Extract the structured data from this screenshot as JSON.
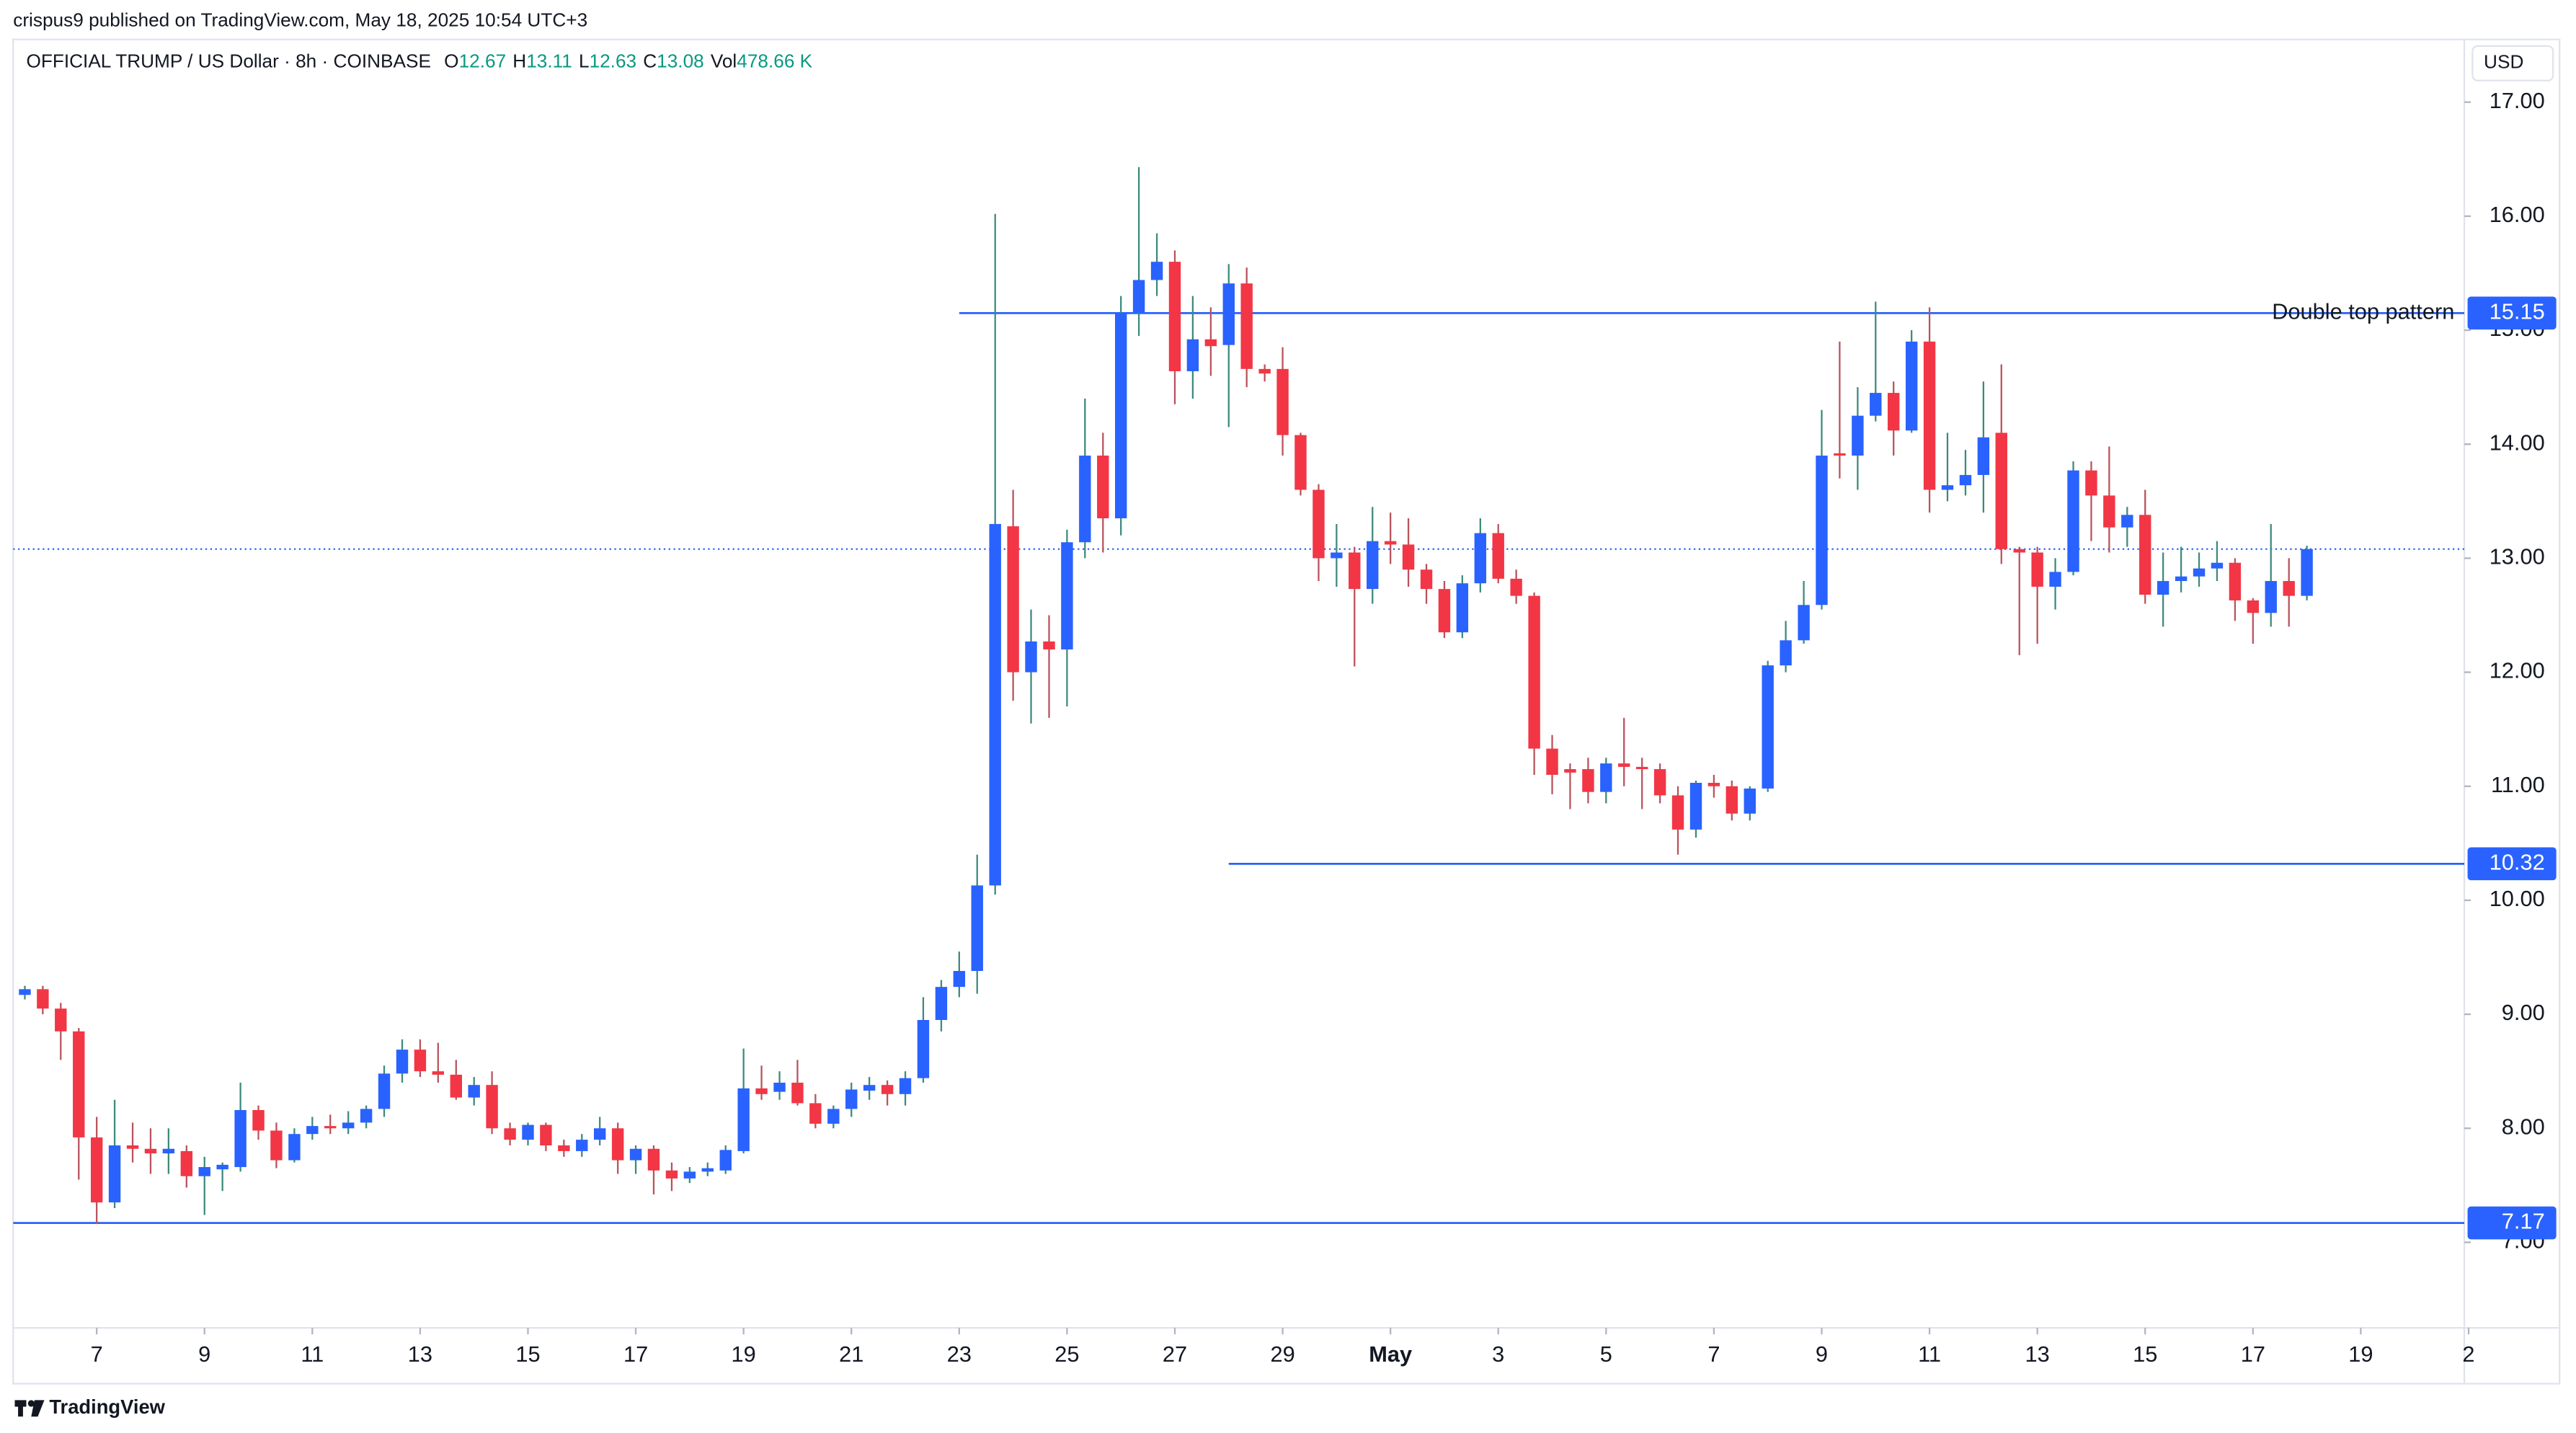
{
  "published_by": "crispus9 published on TradingView.com, May 18, 2025 10:54 UTC+3",
  "footer": "TradingView",
  "chart_data": {
    "type": "candlestick",
    "title": "OFFICIAL TRUMP / US Dollar · 8h · COINBASE",
    "currency": "USD",
    "legend": {
      "open_label": "O",
      "high_label": "H",
      "low_label": "L",
      "close_label": "C",
      "volume_label": "Vol",
      "volume": "478.66 K"
    },
    "up_color": "#2962ff",
    "down_color": "#f23645",
    "wick_up_color": "#3d8a7c",
    "wick_down_color": "#b8535d",
    "level_color": "#2962ff",
    "annotation_color": "#9c27b0",
    "value_color": "#089981",
    "last_price_line": true,
    "x": [
      5.667,
      6,
      6.333,
      6.667,
      7,
      7.333,
      7.667,
      8,
      8.333,
      8.667,
      9,
      9.333,
      9.667,
      10,
      10.333,
      10.667,
      11,
      11.333,
      11.667,
      12,
      12.333,
      12.667,
      13,
      13.333,
      13.667,
      14,
      14.333,
      14.667,
      15,
      15.333,
      15.667,
      16,
      16.333,
      16.667,
      17,
      17.333,
      17.667,
      18,
      18.333,
      18.667,
      19,
      19.333,
      19.667,
      20,
      20.333,
      20.667,
      21,
      21.333,
      21.667,
      22,
      22.333,
      22.667,
      23,
      23.333,
      23.667,
      24,
      24.333,
      24.667,
      25,
      25.333,
      25.667,
      26,
      26.333,
      26.667,
      27,
      27.333,
      27.667,
      28,
      28.333,
      28.667,
      29,
      29.333,
      29.667,
      30,
      30.333,
      30.667,
      31,
      31.333,
      31.667,
      32,
      32.333,
      32.667,
      33,
      33.333,
      33.667,
      34,
      34.333,
      34.667,
      35,
      35.333,
      35.667,
      36,
      36.333,
      36.667,
      37,
      37.333,
      37.667,
      38,
      38.333,
      38.667,
      39,
      39.333,
      39.667,
      40,
      40.333,
      40.667,
      41,
      41.333,
      41.667,
      42,
      42.333,
      42.667,
      43,
      43.333,
      43.667,
      44,
      44.333,
      44.667,
      45,
      45.333,
      45.667,
      46,
      46.333,
      46.667,
      47,
      47.333,
      47.667,
      48
    ],
    "open": [
      9.17,
      9.22,
      9.05,
      8.85,
      7.92,
      7.35,
      7.85,
      7.82,
      7.78,
      7.8,
      7.58,
      7.64,
      7.66,
      8.16,
      7.98,
      7.72,
      7.95,
      8.02,
      8.0,
      8.05,
      8.17,
      8.48,
      8.69,
      8.5,
      8.47,
      8.27,
      8.38,
      8.0,
      7.9,
      8.03,
      7.85,
      7.8,
      7.9,
      8.0,
      7.72,
      7.82,
      7.63,
      7.56,
      7.62,
      7.63,
      7.8,
      8.35,
      8.32,
      8.4,
      8.22,
      8.04,
      8.17,
      8.33,
      8.38,
      8.3,
      8.44,
      8.95,
      9.24,
      9.38,
      10.13,
      13.28,
      12.0,
      12.27,
      12.2,
      13.14,
      13.9,
      13.35,
      15.15,
      15.44,
      15.6,
      14.64,
      14.92,
      14.87,
      15.41,
      14.66,
      14.66,
      14.08,
      13.6,
      13.0,
      13.05,
      12.73,
      13.15,
      13.12,
      12.9,
      12.73,
      12.35,
      12.78,
      13.22,
      12.82,
      12.67,
      11.33,
      11.15,
      11.15,
      10.95,
      11.2,
      11.17,
      11.15,
      10.92,
      10.62,
      11.03,
      11.0,
      10.76,
      10.98,
      12.06,
      12.28,
      12.59,
      13.92,
      13.9,
      14.25,
      14.45,
      14.12,
      14.9,
      13.6,
      13.64,
      13.73,
      14.1,
      13.08,
      13.05,
      12.75,
      12.88,
      13.77,
      13.55,
      13.27,
      13.38,
      12.68,
      12.8,
      12.84,
      12.91,
      12.96,
      12.63,
      12.52,
      12.8,
      12.67
    ],
    "high": [
      9.25,
      9.25,
      9.1,
      8.88,
      8.1,
      8.25,
      8.05,
      8.0,
      8.0,
      7.85,
      7.75,
      7.7,
      8.4,
      8.2,
      8.05,
      8.0,
      8.1,
      8.12,
      8.15,
      8.2,
      8.55,
      8.78,
      8.78,
      8.75,
      8.6,
      8.45,
      8.5,
      8.05,
      8.05,
      8.05,
      7.9,
      7.95,
      8.1,
      8.05,
      7.85,
      7.85,
      7.7,
      7.66,
      7.7,
      7.85,
      8.7,
      8.55,
      8.5,
      8.6,
      8.3,
      8.2,
      8.4,
      8.45,
      8.42,
      8.5,
      9.15,
      9.3,
      9.55,
      10.4,
      16.02,
      13.6,
      12.55,
      12.5,
      13.25,
      14.4,
      14.1,
      15.3,
      16.43,
      15.85,
      15.7,
      15.3,
      15.2,
      15.58,
      15.55,
      14.7,
      14.85,
      14.1,
      13.65,
      13.3,
      13.1,
      13.45,
      13.4,
      13.35,
      12.95,
      12.8,
      12.85,
      13.35,
      13.3,
      12.9,
      12.7,
      11.45,
      11.2,
      11.25,
      11.25,
      11.6,
      11.25,
      11.2,
      11.0,
      11.05,
      11.1,
      11.05,
      11.0,
      12.1,
      12.45,
      12.8,
      14.3,
      14.9,
      14.5,
      15.25,
      14.55,
      15.0,
      15.2,
      14.1,
      13.95,
      14.55,
      14.7,
      13.1,
      13.1,
      13.0,
      13.85,
      13.85,
      13.98,
      13.45,
      13.6,
      13.05,
      13.1,
      13.05,
      13.15,
      13.0,
      12.65,
      13.3,
      13.0,
      13.11
    ],
    "low": [
      9.13,
      9.0,
      8.6,
      7.55,
      7.16,
      7.3,
      7.7,
      7.6,
      7.6,
      7.48,
      7.24,
      7.45,
      7.62,
      7.9,
      7.65,
      7.7,
      7.9,
      7.95,
      7.95,
      8.0,
      8.1,
      8.4,
      8.45,
      8.4,
      8.25,
      8.2,
      7.95,
      7.85,
      7.85,
      7.8,
      7.75,
      7.75,
      7.85,
      7.6,
      7.6,
      7.42,
      7.45,
      7.52,
      7.58,
      7.6,
      7.78,
      8.25,
      8.25,
      8.2,
      8.0,
      8.0,
      8.1,
      8.25,
      8.2,
      8.2,
      8.4,
      8.85,
      9.15,
      9.18,
      10.05,
      11.75,
      11.55,
      11.6,
      11.7,
      13.0,
      13.05,
      13.2,
      14.95,
      15.3,
      14.35,
      14.4,
      14.6,
      14.15,
      14.5,
      14.55,
      13.9,
      13.55,
      12.8,
      12.75,
      12.05,
      12.6,
      12.95,
      12.75,
      12.6,
      12.3,
      12.3,
      12.7,
      12.78,
      12.6,
      11.1,
      10.93,
      10.8,
      10.85,
      10.85,
      11.0,
      10.8,
      10.85,
      10.4,
      10.55,
      10.9,
      10.7,
      10.7,
      10.95,
      12.0,
      12.25,
      12.55,
      13.7,
      13.6,
      14.2,
      13.9,
      14.1,
      13.4,
      13.5,
      13.55,
      13.4,
      12.95,
      12.15,
      12.25,
      12.55,
      12.85,
      13.15,
      13.05,
      13.1,
      12.6,
      12.4,
      12.7,
      12.75,
      12.8,
      12.45,
      12.25,
      12.4,
      12.4,
      12.63
    ],
    "close": [
      9.22,
      9.05,
      8.85,
      7.92,
      7.35,
      7.85,
      7.82,
      7.78,
      7.82,
      7.58,
      7.66,
      7.68,
      8.16,
      7.98,
      7.72,
      7.95,
      8.02,
      8.0,
      8.05,
      8.17,
      8.48,
      8.69,
      8.5,
      8.47,
      8.27,
      8.38,
      8.0,
      7.9,
      8.03,
      7.85,
      7.8,
      7.9,
      8.0,
      7.72,
      7.82,
      7.63,
      7.56,
      7.62,
      7.65,
      7.81,
      8.35,
      8.3,
      8.4,
      8.22,
      8.04,
      8.17,
      8.34,
      8.38,
      8.3,
      8.44,
      8.95,
      9.24,
      9.38,
      10.13,
      13.3,
      12.0,
      12.27,
      12.2,
      13.14,
      13.9,
      13.35,
      15.15,
      15.44,
      15.6,
      14.64,
      14.92,
      14.86,
      15.41,
      14.66,
      14.62,
      14.08,
      13.6,
      13.0,
      13.05,
      12.73,
      13.15,
      13.12,
      12.9,
      12.73,
      12.35,
      12.78,
      13.22,
      12.82,
      12.67,
      11.33,
      11.1,
      11.12,
      10.95,
      11.2,
      11.17,
      11.15,
      10.92,
      10.62,
      11.03,
      11.0,
      10.76,
      10.98,
      12.06,
      12.28,
      12.59,
      13.9,
      13.9,
      14.25,
      14.45,
      14.12,
      14.9,
      13.6,
      13.64,
      13.73,
      14.06,
      13.08,
      13.05,
      12.75,
      12.88,
      13.77,
      13.55,
      13.27,
      13.38,
      12.68,
      12.8,
      12.84,
      12.91,
      12.96,
      12.63,
      12.52,
      12.8,
      12.67,
      13.08
    ],
    "xlim": [
      5.45,
      50.92
    ],
    "xticks": [
      7,
      9,
      11,
      13,
      15,
      17,
      19,
      21,
      23,
      25,
      27,
      29,
      {
        "value": 31,
        "label": "May"
      },
      {
        "value": 33,
        "label": "3"
      },
      {
        "value": 35,
        "label": "5"
      },
      {
        "value": 37,
        "label": "7"
      },
      {
        "value": 39,
        "label": "9"
      },
      {
        "value": 41,
        "label": "11"
      },
      {
        "value": 43,
        "label": "13"
      },
      {
        "value": 45,
        "label": "15"
      },
      {
        "value": 47,
        "label": "17"
      },
      {
        "value": 49,
        "label": "19"
      },
      {
        "value": 51,
        "label": "2"
      }
    ],
    "ylim": [
      6.25,
      17.55
    ],
    "yticks": [
      {
        "value": 7,
        "label": "7.00"
      },
      {
        "value": 8,
        "label": "8.00"
      },
      {
        "value": 9,
        "label": "9.00"
      },
      {
        "value": 10,
        "label": "10.00"
      },
      {
        "value": 11,
        "label": "11.00"
      },
      {
        "value": 12,
        "label": "12.00"
      },
      {
        "value": 13,
        "label": "13.00"
      },
      {
        "value": 14,
        "label": "14.00"
      },
      {
        "value": 15,
        "label": "15.00"
      },
      {
        "value": 16,
        "label": "16.00"
      },
      {
        "value": 17,
        "label": "17.00"
      }
    ],
    "levels": [
      {
        "value": 15.15,
        "start": 23,
        "annotation": "Double top pattern"
      },
      {
        "value": 10.32,
        "start": 28
      },
      {
        "value": 7.17
      }
    ]
  }
}
